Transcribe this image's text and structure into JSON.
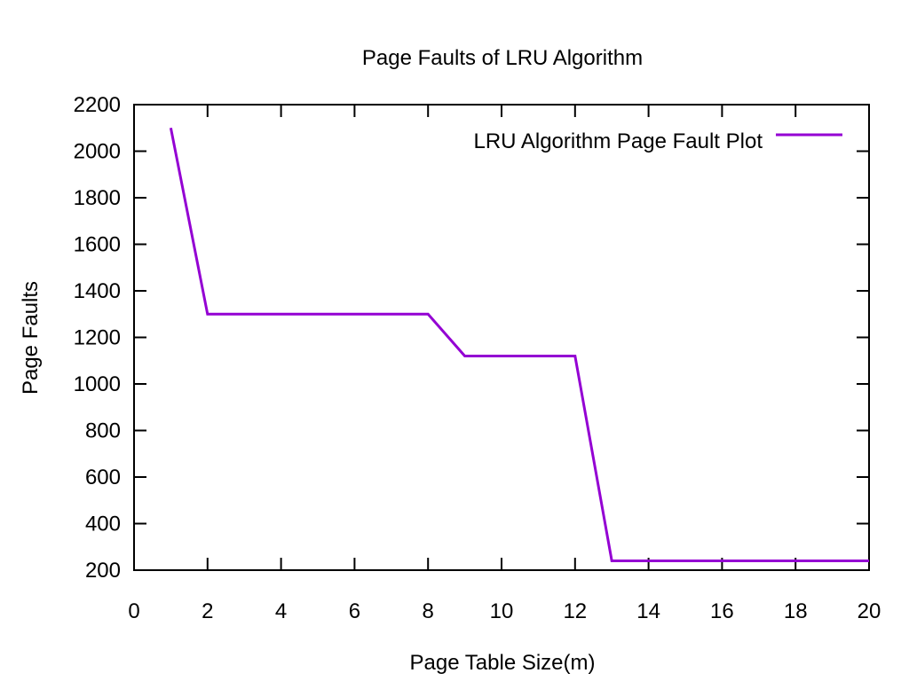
{
  "chart_data": {
    "type": "line",
    "title": "Page Faults of LRU Algorithm",
    "xlabel": "Page Table Size(m)",
    "ylabel": "Page Faults",
    "xlim": [
      0,
      20
    ],
    "ylim": [
      200,
      2200
    ],
    "xticks": [
      0,
      2,
      4,
      6,
      8,
      10,
      12,
      14,
      16,
      18,
      20
    ],
    "yticks": [
      200,
      400,
      600,
      800,
      1000,
      1200,
      1400,
      1600,
      1800,
      2000,
      2200
    ],
    "grid": false,
    "legend_position": "top-right",
    "series": [
      {
        "name": "LRU Algorithm Page Fault Plot",
        "color": "#9400d3",
        "x": [
          1,
          2,
          3,
          4,
          5,
          6,
          7,
          8,
          9,
          10,
          11,
          12,
          13,
          14,
          15,
          16,
          17,
          18,
          19,
          20
        ],
        "y": [
          2100,
          1300,
          1300,
          1300,
          1300,
          1300,
          1300,
          1300,
          1120,
          1120,
          1120,
          1120,
          240,
          240,
          240,
          240,
          240,
          240,
          240,
          240
        ]
      }
    ]
  }
}
